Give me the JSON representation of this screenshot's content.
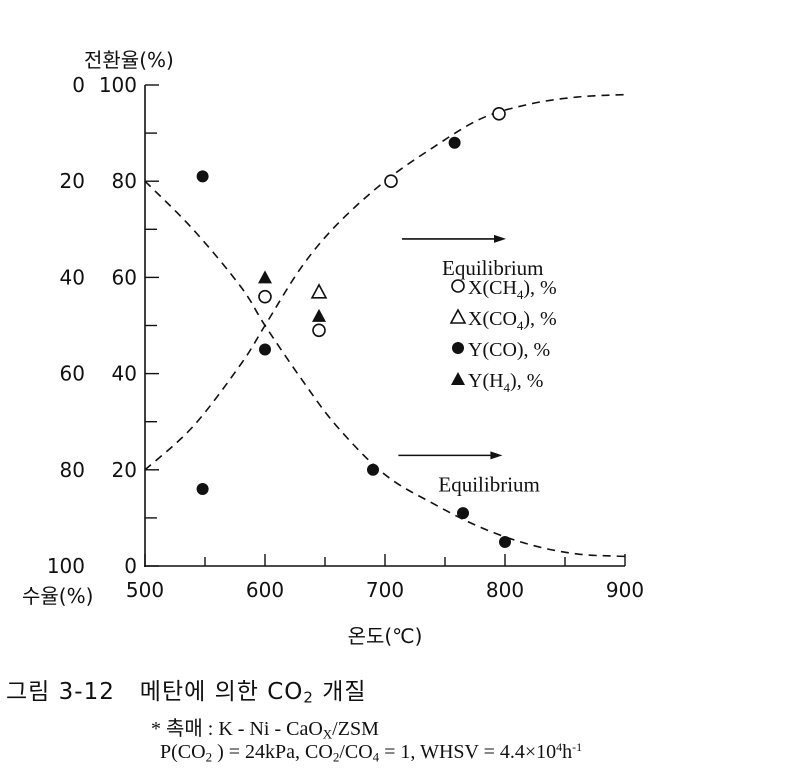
{
  "chart_data": {
    "type": "scatter",
    "xlabel": "온도(℃)",
    "y_left_outer_label": "전환율(%)",
    "y_left_inner_label": "수율(%)",
    "xlim": [
      500,
      900
    ],
    "ylim": [
      0,
      100
    ],
    "x_ticks": [
      "500",
      "600",
      "700",
      "800",
      "900"
    ],
    "y_ticks_inner": [
      "0",
      "20",
      "40",
      "60",
      "80",
      "100"
    ],
    "y_ticks_outer": [
      "100",
      "80",
      "60",
      "40",
      "20",
      "0"
    ],
    "grid": false,
    "legend_position": "right-middle",
    "series": [
      {
        "name": "X(CH4), %",
        "marker": "open-circle",
        "points": [
          [
            600,
            56
          ],
          [
            645,
            49
          ],
          [
            705,
            80
          ],
          [
            795,
            94
          ]
        ]
      },
      {
        "name": "X(CO4), %",
        "marker": "open-triangle",
        "points": [
          [
            645,
            57
          ]
        ]
      },
      {
        "name": "Y(CO), %",
        "marker": "filled-circle",
        "points": [
          [
            548,
            81
          ],
          [
            548,
            16
          ],
          [
            600,
            45
          ],
          [
            690,
            20
          ],
          [
            758,
            88
          ],
          [
            765,
            11
          ],
          [
            800,
            5
          ]
        ]
      },
      {
        "name": "Y(H4), %",
        "marker": "filled-triangle",
        "points": [
          [
            600,
            60
          ],
          [
            645,
            52
          ]
        ]
      }
    ],
    "equilibrium_curves": [
      {
        "name": "rising",
        "points": [
          [
            500,
            20
          ],
          [
            540,
            29
          ],
          [
            580,
            42
          ],
          [
            600,
            50
          ],
          [
            630,
            62
          ],
          [
            660,
            71
          ],
          [
            700,
            80
          ],
          [
            740,
            87
          ],
          [
            780,
            93
          ],
          [
            820,
            96
          ],
          [
            860,
            97.5
          ],
          [
            900,
            98
          ]
        ]
      },
      {
        "name": "falling",
        "points": [
          [
            500,
            80
          ],
          [
            540,
            70
          ],
          [
            580,
            58
          ],
          [
            600,
            50
          ],
          [
            630,
            39
          ],
          [
            660,
            29
          ],
          [
            700,
            19
          ],
          [
            740,
            13
          ],
          [
            780,
            8
          ],
          [
            820,
            4.5
          ],
          [
            860,
            2.5
          ],
          [
            900,
            2
          ]
        ]
      }
    ],
    "annotations": [
      {
        "text": "Equilibrium",
        "x": 700,
        "y": 68
      },
      {
        "text": "Equilibrium",
        "x": 697,
        "y": 23
      }
    ]
  },
  "caption": {
    "figure_number": "그림 3-12",
    "title": "메탄에 의한 CO",
    "title_sub": "2",
    "title_tail": " 개질"
  },
  "notes": {
    "catalyst": "* 촉매 : K - Ni - CaO",
    "catalyst_sub": "X",
    "catalyst_tail": "/ZSM",
    "conditions_html": "P(CO<sub>2</sub> ) = 24kPa, CO<sub>2</sub>/CO<sub>4</sub> = 1, WHSV = 4.4×10<sup>4</sup>h<sup>-1</sup>"
  },
  "colors": {
    "ink": "#111111",
    "background": "#ffffff"
  }
}
